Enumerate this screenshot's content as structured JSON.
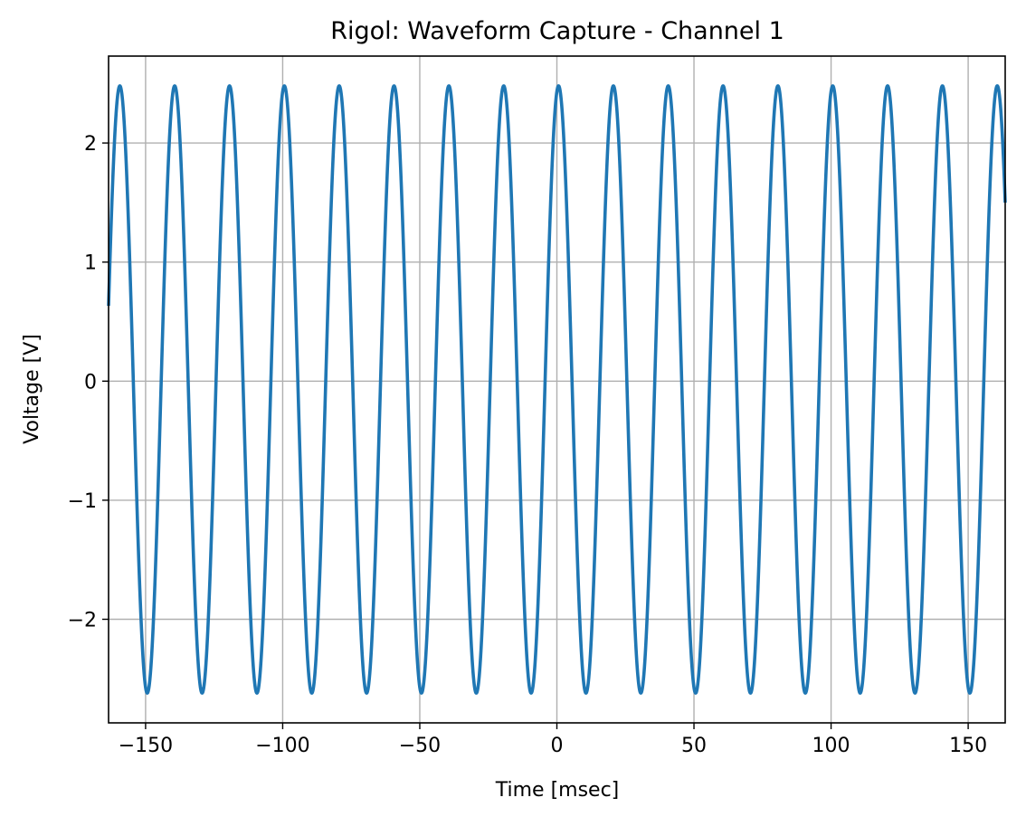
{
  "chart_data": {
    "type": "line",
    "title": "Rigol: Waveform Capture - Channel 1",
    "xlabel": "Time [msec]",
    "ylabel": "Voltage [V]",
    "xlim": [
      -163.5,
      163.5
    ],
    "ylim": [
      -2.87,
      2.73
    ],
    "grid": true,
    "x_ticks": [
      -150,
      -100,
      -50,
      0,
      50,
      100,
      150
    ],
    "x_tick_labels": [
      "−150",
      "−100",
      "−50",
      "0",
      "50",
      "100",
      "150"
    ],
    "y_ticks": [
      -2,
      -1,
      0,
      1,
      2
    ],
    "y_tick_labels": [
      "−2",
      "−1",
      "0",
      "1",
      "2"
    ],
    "series": [
      {
        "color": "#1f77b4",
        "waveform": "sine",
        "frequency_hz": 50,
        "amplitude_v": 2.55,
        "offset_v": -0.07,
        "phase_deg": 79,
        "x_range": [
          -163.5,
          163.5
        ]
      }
    ],
    "colors": {
      "line": "#1f77b4",
      "grid": "#b0b0b0",
      "frame": "#000000"
    }
  }
}
